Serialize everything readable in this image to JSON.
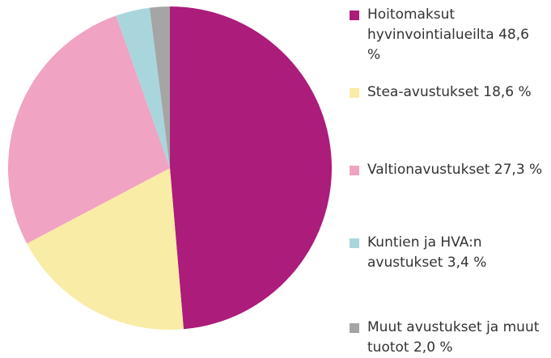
{
  "chart_data": {
    "type": "pie",
    "categories": [
      "Hoitomaksut hyvinvointialueilta",
      "Stea-avustukset",
      "Valtionavustukset",
      "Kuntien ja HVA:n avustukset",
      "Muut avustukset ja muut tuotot"
    ],
    "values": [
      48.6,
      18.6,
      27.3,
      3.4,
      2.0
    ],
    "value_labels": [
      "48,6 %",
      "18,6 %",
      "27,3 %",
      "3,4 %",
      "2,0 %"
    ],
    "colors": [
      "#ac1c7a",
      "#f9eca6",
      "#f0a3c2",
      "#a9d6dc",
      "#a5a5a5"
    ],
    "legend": "right"
  }
}
